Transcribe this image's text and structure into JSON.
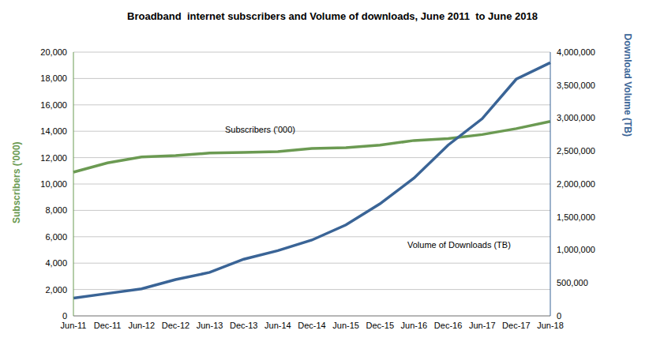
{
  "chart_data": {
    "type": "line",
    "title": "Broadband  internet subscribers and Volume of downloads, June 2011  to June 2018",
    "categories": [
      "Jun-11",
      "Dec-11",
      "Jun-12",
      "Dec-12",
      "Jun-13",
      "Dec-13",
      "Jun-14",
      "Dec-14",
      "Jun-15",
      "Dec-15",
      "Jun-16",
      "Dec-16",
      "Jun-17",
      "Dec-17",
      "Jun-18"
    ],
    "y_label": "Subscribers ('000)",
    "y2_label": "Download Volume (TB)",
    "ylim": [
      0,
      20000
    ],
    "yticks": [
      0,
      {
        "value": 2000,
        "label": "2,000"
      },
      {
        "value": 4000,
        "label": "4,000"
      },
      {
        "value": 6000,
        "label": "6,000"
      },
      {
        "value": 8000,
        "label": "8,000"
      },
      {
        "value": 10000,
        "label": "10,000"
      },
      {
        "value": 12000,
        "label": "12,000"
      },
      {
        "value": 14000,
        "label": "14,000"
      },
      {
        "value": 16000,
        "label": "16,000"
      },
      {
        "value": 18000,
        "label": "18,000"
      },
      {
        "value": 20000,
        "label": "20,000"
      }
    ],
    "y2lim": [
      0,
      4000000
    ],
    "y2ticks": [
      0,
      {
        "value": 500000,
        "label": "500,000"
      },
      {
        "value": 1000000,
        "label": "1,000,000"
      },
      {
        "value": 1500000,
        "label": "1,500,000"
      },
      {
        "value": 2000000,
        "label": "2,000,000"
      },
      {
        "value": 2500000,
        "label": "2,500,000"
      },
      {
        "value": 3000000,
        "label": "3,000,000"
      },
      {
        "value": 3500000,
        "label": "3,500,000"
      },
      {
        "value": 4000000,
        "label": "4,000,000"
      }
    ],
    "grid": true,
    "series": [
      {
        "name": "Subscribers ('000)",
        "color": "#6b9a52",
        "values": [
          10900,
          11600,
          12050,
          12150,
          12350,
          12400,
          12450,
          12700,
          12750,
          12950,
          13300,
          13450,
          13750,
          14200,
          14750
        ]
      },
      {
        "name": "Volume of Downloads (TB)",
        "color": "#3a6496",
        "axis": "y2",
        "values": [
          270000,
          340000,
          410000,
          550000,
          660000,
          860000,
          990000,
          1150000,
          1380000,
          1700000,
          2090000,
          2590000,
          2990000,
          3590000,
          3840000
        ]
      }
    ]
  }
}
